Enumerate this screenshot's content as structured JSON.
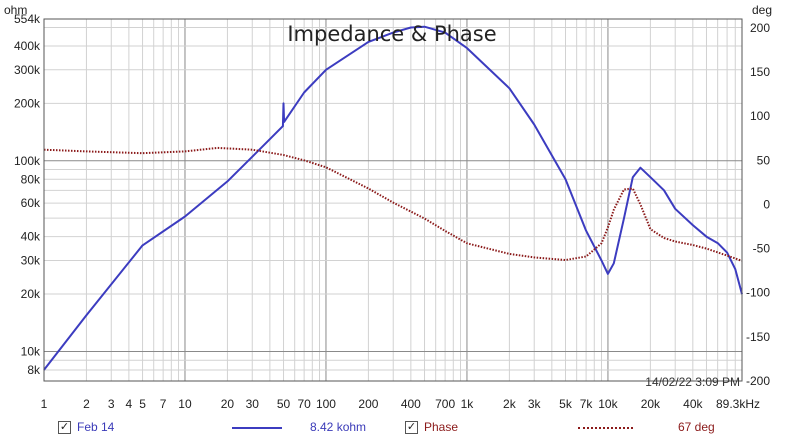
{
  "chart_data": {
    "type": "line",
    "title": "Impedance & Phase",
    "xlabel": "",
    "ylabel_left": "ohm",
    "ylabel_right": "deg",
    "x_scale": "log",
    "y_left_scale": "log",
    "xlim": [
      1,
      89300
    ],
    "ylim_left": [
      7000,
      554000
    ],
    "ylim_right": [
      -200,
      210
    ],
    "grid": true,
    "timestamp": "14/02/22 3:09 PM",
    "x_ticks": [
      {
        "v": 1,
        "label": "1"
      },
      {
        "v": 2,
        "label": "2"
      },
      {
        "v": 3,
        "label": "3"
      },
      {
        "v": 4,
        "label": "4"
      },
      {
        "v": 5,
        "label": "5"
      },
      {
        "v": 7,
        "label": "7"
      },
      {
        "v": 10,
        "label": "10"
      },
      {
        "v": 20,
        "label": "20"
      },
      {
        "v": 30,
        "label": "30"
      },
      {
        "v": 50,
        "label": "50"
      },
      {
        "v": 70,
        "label": "70"
      },
      {
        "v": 100,
        "label": "100"
      },
      {
        "v": 200,
        "label": "200"
      },
      {
        "v": 400,
        "label": "400"
      },
      {
        "v": 700,
        "label": "700"
      },
      {
        "v": 1000,
        "label": "1k"
      },
      {
        "v": 2000,
        "label": "2k"
      },
      {
        "v": 3000,
        "label": "3k"
      },
      {
        "v": 5000,
        "label": "5k"
      },
      {
        "v": 7000,
        "label": "7k"
      },
      {
        "v": 10000,
        "label": "10k"
      },
      {
        "v": 20000,
        "label": "20k"
      },
      {
        "v": 40000,
        "label": "40k"
      },
      {
        "v": 89300,
        "label": "89.3kHz"
      }
    ],
    "y_left_ticks": [
      {
        "v": 554000,
        "label": "554k"
      },
      {
        "v": 400000,
        "label": "400k"
      },
      {
        "v": 300000,
        "label": "300k"
      },
      {
        "v": 200000,
        "label": "200k"
      },
      {
        "v": 100000,
        "label": "100k"
      },
      {
        "v": 80000,
        "label": "80k"
      },
      {
        "v": 60000,
        "label": "60k"
      },
      {
        "v": 40000,
        "label": "40k"
      },
      {
        "v": 30000,
        "label": "30k"
      },
      {
        "v": 20000,
        "label": "20k"
      },
      {
        "v": 10000,
        "label": "10k"
      },
      {
        "v": 8000,
        "label": "8k"
      }
    ],
    "y_right_ticks": [
      {
        "v": 200,
        "label": "200"
      },
      {
        "v": 150,
        "label": "150"
      },
      {
        "v": 100,
        "label": "100"
      },
      {
        "v": 50,
        "label": "50"
      },
      {
        "v": 0,
        "label": "0"
      },
      {
        "v": -50,
        "label": "-50"
      },
      {
        "v": -100,
        "label": "-100"
      },
      {
        "v": -150,
        "label": "-150"
      },
      {
        "v": -200,
        "label": "-200"
      }
    ],
    "series": [
      {
        "name": "Feb 14",
        "axis": "left",
        "color": "#3c3cc0",
        "style": "solid",
        "legend_value": "8.42 kohm",
        "x": [
          1,
          2,
          5,
          10,
          20,
          30,
          49.5,
          50,
          50.5,
          70,
          100,
          200,
          300,
          400,
          500,
          700,
          1000,
          2000,
          3000,
          5000,
          7000,
          9000,
          10000,
          11000,
          13000,
          15000,
          17000,
          20000,
          25000,
          30000,
          40000,
          50000,
          60000,
          70000,
          80000,
          89300
        ],
        "y": [
          8000,
          15500,
          36000,
          51000,
          78000,
          105000,
          152000,
          200000,
          160000,
          228000,
          300000,
          420000,
          470000,
          500000,
          505000,
          470000,
          390000,
          240000,
          155000,
          80000,
          43000,
          30000,
          25500,
          29000,
          50000,
          82000,
          92000,
          82000,
          70000,
          56000,
          46000,
          40000,
          37000,
          33000,
          27000,
          20000
        ]
      },
      {
        "name": "Phase",
        "axis": "right",
        "color": "#8b1a1a",
        "style": "dotted",
        "legend_value": "67 deg",
        "x": [
          1,
          2,
          5,
          10,
          17,
          30,
          50,
          70,
          100,
          200,
          300,
          500,
          700,
          1000,
          2000,
          3000,
          5000,
          7000,
          9000,
          10000,
          11000,
          13000,
          15000,
          17000,
          20000,
          25000,
          30000,
          40000,
          50000,
          70000,
          89300
        ],
        "y": [
          62,
          60,
          58,
          60,
          64,
          62,
          56,
          50,
          42,
          18,
          2,
          -16,
          -30,
          -44,
          -56,
          -60,
          -63,
          -59,
          -44,
          -26,
          -6,
          17,
          18,
          0,
          -28,
          -38,
          -42,
          -46,
          -50,
          -58,
          -64
        ]
      }
    ],
    "legend": [
      {
        "check": "✓",
        "label": "Feb 14",
        "value": "8.42 kohm"
      },
      {
        "check": "✓",
        "label": "Phase",
        "value": "67 deg"
      }
    ]
  }
}
